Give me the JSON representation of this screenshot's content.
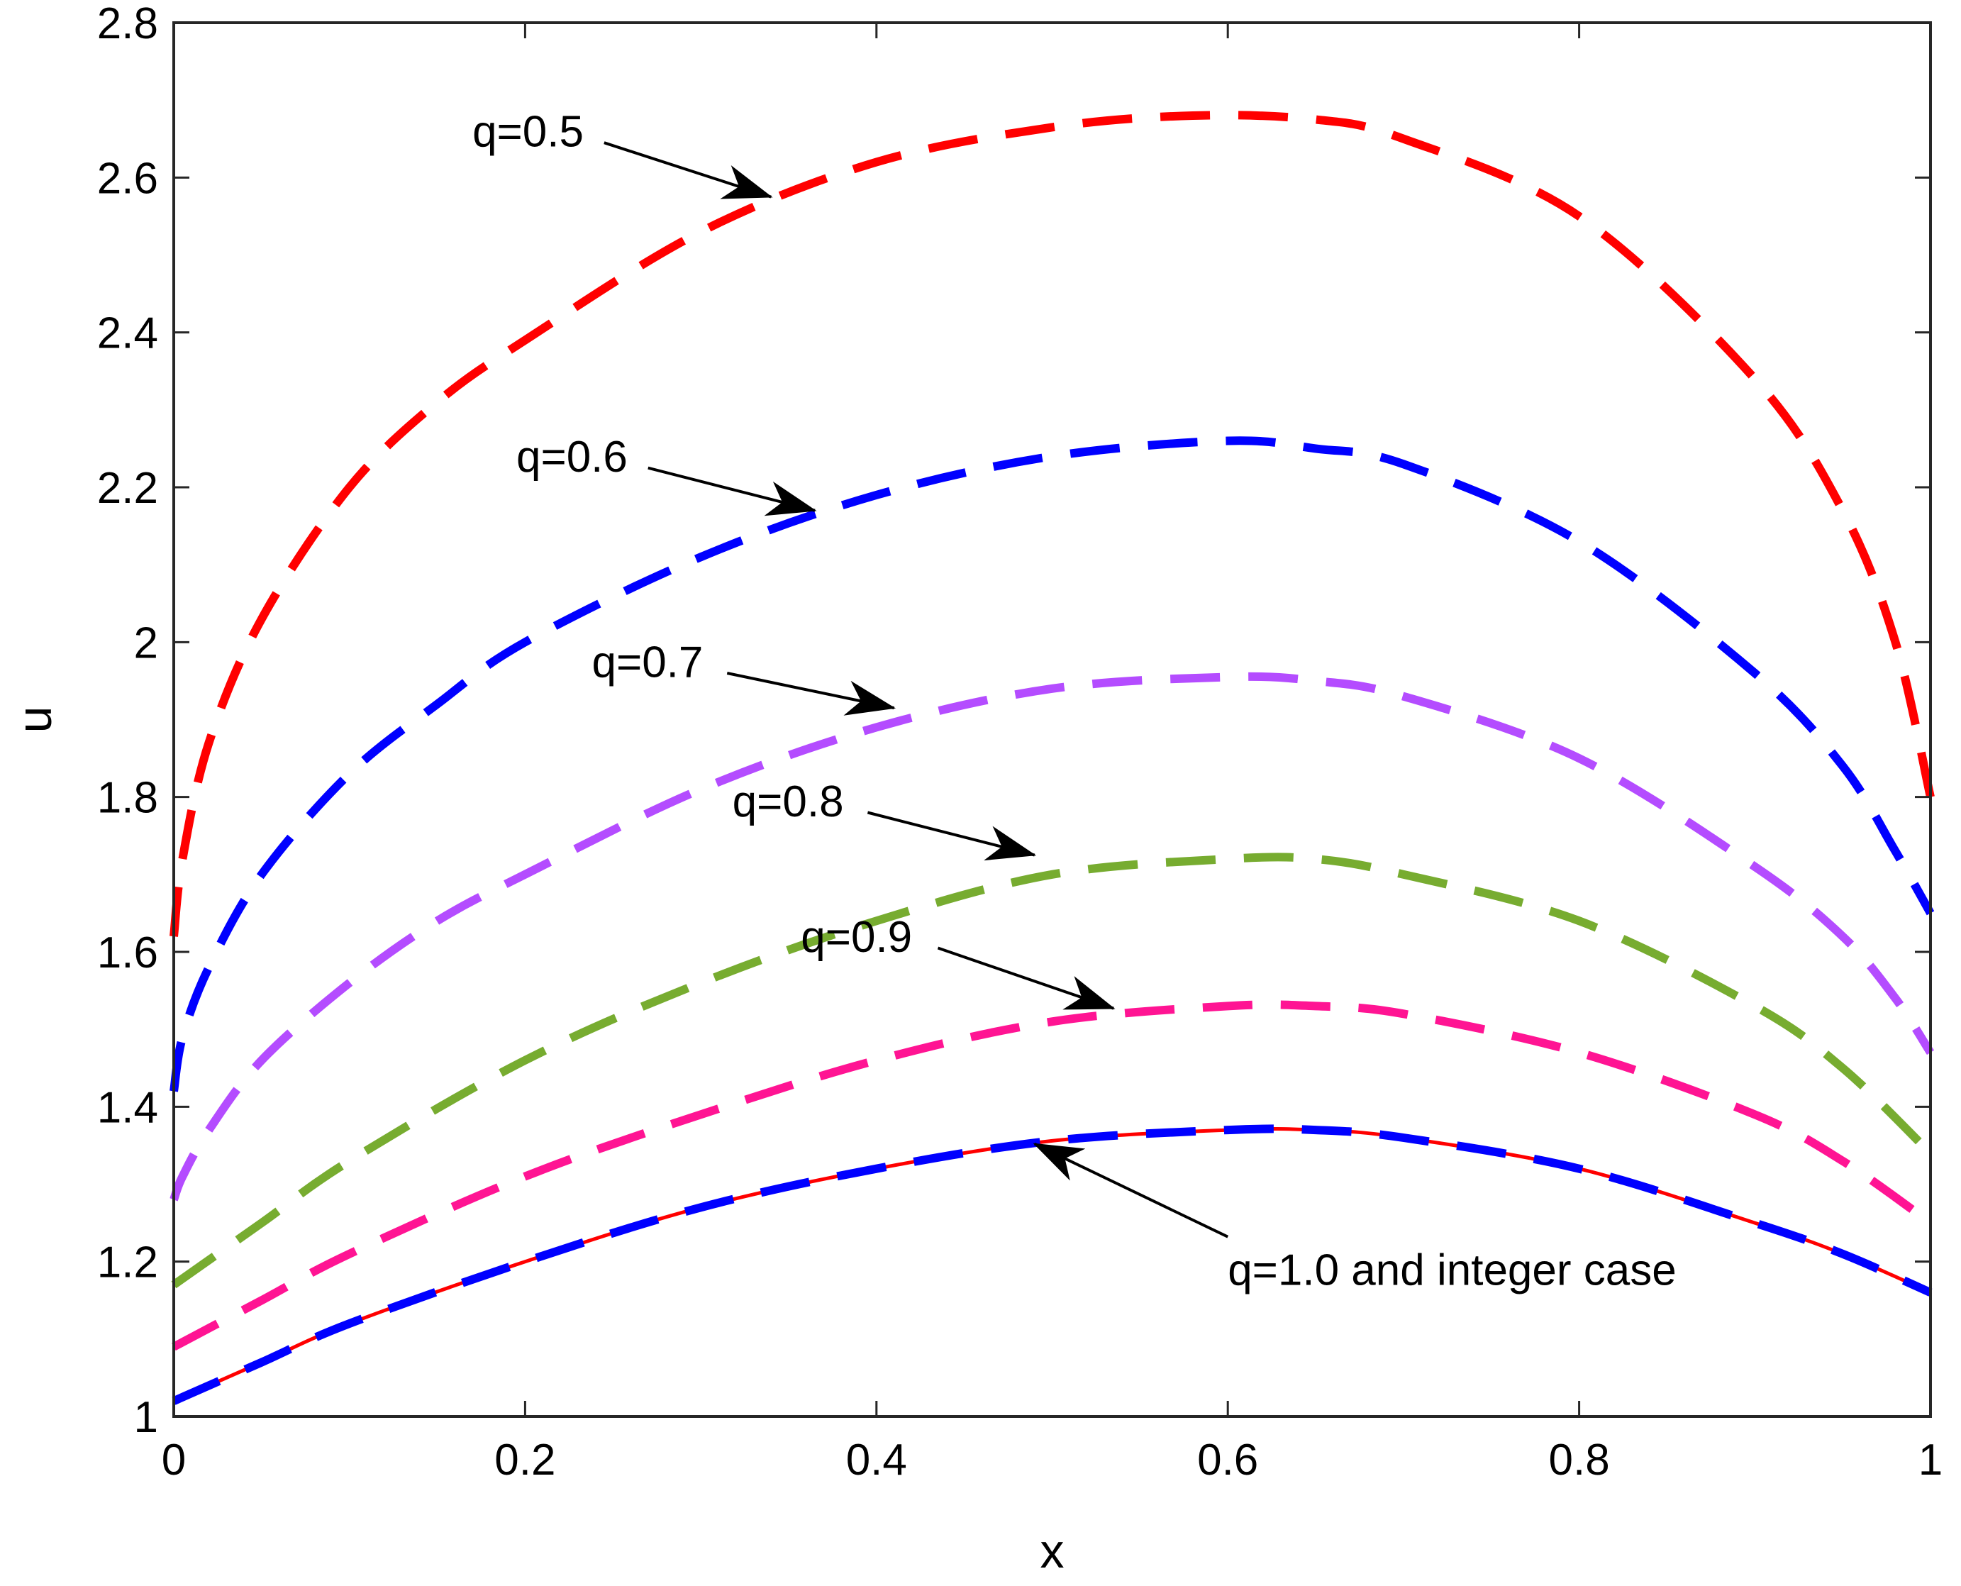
{
  "chart_data": {
    "type": "line",
    "title": "",
    "xlabel": "x",
    "ylabel": "u",
    "xlim": [
      0,
      1
    ],
    "ylim": [
      1,
      2.8
    ],
    "xticks": [
      0,
      0.2,
      0.4,
      0.6,
      0.8,
      1
    ],
    "xtick_labels": [
      "0",
      "0.2",
      "0.4",
      "0.6",
      "0.8",
      "1"
    ],
    "yticks": [
      1,
      1.2,
      1.4,
      1.6,
      1.8,
      2,
      2.2,
      2.4,
      2.6,
      2.8
    ],
    "ytick_labels": [
      "1",
      "1.2",
      "1.4",
      "1.6",
      "1.8",
      "2",
      "2.2",
      "2.4",
      "2.6",
      "2.8"
    ],
    "grid": false,
    "series": [
      {
        "name": "q=0.5",
        "color": "#ff0000",
        "style": "dashed",
        "x": [
          0,
          0.005,
          0.02,
          0.05,
          0.1,
          0.15,
          0.2,
          0.3,
          0.4,
          0.5,
          0.58,
          0.65,
          0.7,
          0.8,
          0.9,
          0.95,
          0.98,
          1.0
        ],
        "y": [
          1.62,
          1.72,
          1.87,
          2.03,
          2.2,
          2.31,
          2.39,
          2.53,
          2.62,
          2.665,
          2.68,
          2.675,
          2.65,
          2.55,
          2.34,
          2.17,
          2.0,
          1.8
        ]
      },
      {
        "name": "q=0.6",
        "color": "#0000ff",
        "style": "dashed",
        "x": [
          0,
          0.005,
          0.02,
          0.05,
          0.1,
          0.15,
          0.2,
          0.3,
          0.4,
          0.5,
          0.6,
          0.65,
          0.7,
          0.8,
          0.9,
          0.95,
          0.98,
          1.0
        ],
        "y": [
          1.42,
          1.49,
          1.58,
          1.7,
          1.83,
          1.92,
          2.0,
          2.11,
          2.19,
          2.24,
          2.26,
          2.25,
          2.23,
          2.13,
          1.96,
          1.84,
          1.73,
          1.65
        ]
      },
      {
        "name": "q=0.7",
        "color": "#b44cff",
        "style": "dashed",
        "x": [
          0,
          0.005,
          0.02,
          0.05,
          0.1,
          0.15,
          0.2,
          0.3,
          0.4,
          0.5,
          0.6,
          0.65,
          0.7,
          0.8,
          0.9,
          0.95,
          0.98,
          1.0
        ],
        "y": [
          1.28,
          1.31,
          1.37,
          1.46,
          1.56,
          1.64,
          1.7,
          1.81,
          1.89,
          1.94,
          1.955,
          1.95,
          1.93,
          1.85,
          1.71,
          1.62,
          1.54,
          1.47
        ]
      },
      {
        "name": "q=0.8",
        "color": "#77ac30",
        "style": "dashed",
        "x": [
          0,
          0.05,
          0.1,
          0.2,
          0.3,
          0.4,
          0.5,
          0.6,
          0.65,
          0.7,
          0.8,
          0.9,
          0.95,
          1.0
        ],
        "y": [
          1.17,
          1.25,
          1.33,
          1.46,
          1.56,
          1.64,
          1.7,
          1.72,
          1.72,
          1.7,
          1.64,
          1.53,
          1.45,
          1.34
        ]
      },
      {
        "name": "q=0.9",
        "color": "#ff1493",
        "style": "dashed",
        "x": [
          0,
          0.05,
          0.1,
          0.2,
          0.3,
          0.4,
          0.5,
          0.6,
          0.65,
          0.7,
          0.8,
          0.9,
          0.95,
          1.0
        ],
        "y": [
          1.09,
          1.15,
          1.21,
          1.31,
          1.39,
          1.46,
          1.51,
          1.53,
          1.53,
          1.52,
          1.47,
          1.39,
          1.33,
          1.25
        ]
      },
      {
        "name": "integer case",
        "color": "#ff0000",
        "style": "solid",
        "x": [
          0,
          0.05,
          0.1,
          0.2,
          0.3,
          0.4,
          0.5,
          0.6,
          0.65,
          0.7,
          0.8,
          0.9,
          0.95,
          1.0
        ],
        "y": [
          1.02,
          1.07,
          1.12,
          1.2,
          1.27,
          1.32,
          1.356,
          1.37,
          1.37,
          1.36,
          1.32,
          1.25,
          1.21,
          1.16
        ]
      },
      {
        "name": "q=1.0",
        "color": "#0000ff",
        "style": "dashed",
        "x": [
          0,
          0.05,
          0.1,
          0.2,
          0.3,
          0.4,
          0.5,
          0.6,
          0.65,
          0.7,
          0.8,
          0.9,
          0.95,
          1.0
        ],
        "y": [
          1.02,
          1.07,
          1.12,
          1.2,
          1.27,
          1.32,
          1.356,
          1.37,
          1.37,
          1.36,
          1.32,
          1.25,
          1.21,
          1.16
        ]
      }
    ],
    "annotations": [
      {
        "text": "q=0.5",
        "label_x": 0.17,
        "label_y": 2.64,
        "tail_x": 0.245,
        "tail_y": 2.645,
        "arrow_x": 0.34,
        "arrow_y": 2.575
      },
      {
        "text": "q=0.6",
        "label_x": 0.195,
        "label_y": 2.22,
        "tail_x": 0.27,
        "tail_y": 2.225,
        "arrow_x": 0.365,
        "arrow_y": 2.17
      },
      {
        "text": "q=0.7",
        "label_x": 0.238,
        "label_y": 1.955,
        "tail_x": 0.315,
        "tail_y": 1.96,
        "arrow_x": 0.41,
        "arrow_y": 1.915
      },
      {
        "text": "q=0.8",
        "label_x": 0.318,
        "label_y": 1.775,
        "tail_x": 0.395,
        "tail_y": 1.78,
        "arrow_x": 0.49,
        "arrow_y": 1.725
      },
      {
        "text": "q=0.9",
        "label_x": 0.357,
        "label_y": 1.6,
        "tail_x": 0.435,
        "tail_y": 1.605,
        "arrow_x": 0.535,
        "arrow_y": 1.527
      },
      {
        "text": "q=1.0 and integer case",
        "label_x": 0.6,
        "label_y": 1.17,
        "tail_x": 0.6,
        "tail_y": 1.232,
        "arrow_x": 0.49,
        "arrow_y": 1.352
      }
    ]
  }
}
